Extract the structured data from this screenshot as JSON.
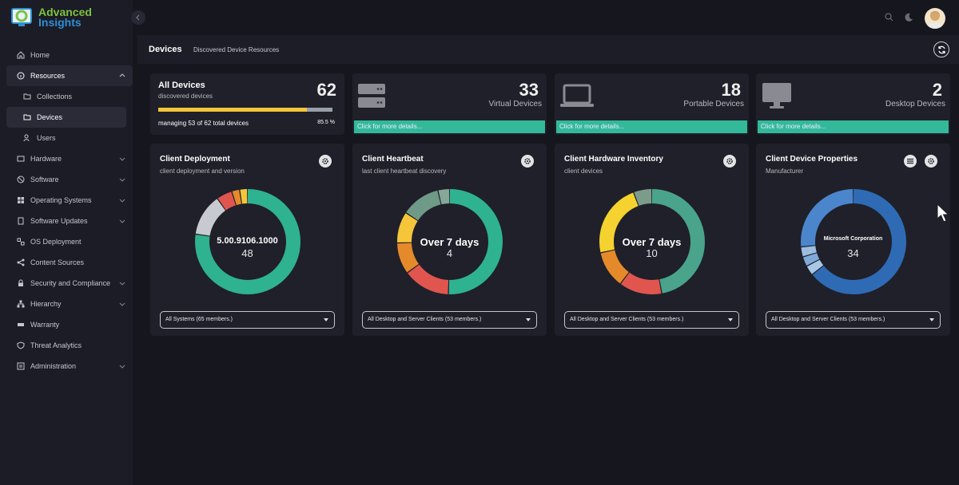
{
  "app": {
    "name_line1": "Advanced",
    "name_line2": "Insights"
  },
  "sidebar": {
    "items": [
      {
        "label": "Home",
        "icon": "home-icon"
      },
      {
        "label": "Resources",
        "icon": "info-icon"
      },
      {
        "label": "Collections",
        "icon": "folder-icon"
      },
      {
        "label": "Devices",
        "icon": "folder-icon"
      },
      {
        "label": "Users",
        "icon": "users-icon"
      },
      {
        "label": "Hardware",
        "icon": "hardware-icon"
      },
      {
        "label": "Software",
        "icon": "software-icon"
      },
      {
        "label": "Operating Systems",
        "icon": "os-icon"
      },
      {
        "label": "Software Updates",
        "icon": "updates-icon"
      },
      {
        "label": "OS Deployment",
        "icon": "deploy-icon"
      },
      {
        "label": "Content Sources",
        "icon": "share-icon"
      },
      {
        "label": "Security and Compliance",
        "icon": "lock-icon"
      },
      {
        "label": "Hierarchy",
        "icon": "hierarchy-icon"
      },
      {
        "label": "Warranty",
        "icon": "warranty-icon"
      },
      {
        "label": "Threat Analytics",
        "icon": "shield-icon"
      },
      {
        "label": "Administration",
        "icon": "admin-icon"
      }
    ]
  },
  "page": {
    "title": "Devices",
    "subtitle": "Discovered Device Resources"
  },
  "summary": {
    "all": {
      "title": "All Devices",
      "subtitle": "discovered devices",
      "count": "62",
      "managing": "managing 53 of 62 total devices",
      "pct": "85.5 %",
      "fraction": 0.855
    },
    "cards": [
      {
        "count": "33",
        "label": "Virtual Devices",
        "details": "Click for more details...",
        "icon": "server-icon"
      },
      {
        "count": "18",
        "label": "Portable Devices",
        "details": "Click for more details...",
        "icon": "laptop-icon"
      },
      {
        "count": "2",
        "label": "Desktop Devices",
        "details": "Click for more details...",
        "icon": "monitor-icon"
      }
    ]
  },
  "donuts": [
    {
      "title": "Client Deployment",
      "subtitle": "client deployment and version",
      "center_label": "5.00.9106.1000",
      "center_value": "48",
      "select": "All Systems (65 members.)",
      "segments": [
        {
          "value": 48,
          "color": "#2fb28f"
        },
        {
          "value": 8,
          "color": "#c8cad2"
        },
        {
          "value": 3,
          "color": "#e0564f"
        },
        {
          "value": 1.5,
          "color": "#e58a2a"
        },
        {
          "value": 1.5,
          "color": "#f5c63a"
        }
      ]
    },
    {
      "title": "Client Heartbeat",
      "subtitle": "last client heartbeat discovery",
      "center_label": "Over 7 days",
      "center_value": "4",
      "select": "All Desktop and Server Clients (53 members.)",
      "segments": [
        {
          "value": 42,
          "color": "#2fb28f"
        },
        {
          "value": 12,
          "color": "#e0564f"
        },
        {
          "value": 8,
          "color": "#e58a2a"
        },
        {
          "value": 8,
          "color": "#f5c63a"
        },
        {
          "value": 10,
          "color": "#6f9a87"
        },
        {
          "value": 3,
          "color": "#85a898"
        }
      ]
    },
    {
      "title": "Client Hardware Inventory",
      "subtitle": "client devices",
      "center_label": "Over 7 days",
      "center_value": "10",
      "select": "All Desktop and Server Clients (53 members.)",
      "segments": [
        {
          "value": 50,
          "color": "#4aa38b"
        },
        {
          "value": 14,
          "color": "#e0564f"
        },
        {
          "value": 12,
          "color": "#e58a2a"
        },
        {
          "value": 24,
          "color": "#f5d22f"
        },
        {
          "value": 6,
          "color": "#7b9c8a"
        }
      ]
    },
    {
      "title": "Client Device Properties",
      "subtitle": "Manufacturer",
      "center_label": "Microsoft Corporation",
      "center_value": "34",
      "select": "All Desktop and Server Clients (53 members.)",
      "segments": [
        {
          "value": 34,
          "color": "#2f6bb5"
        },
        {
          "value": 1.6,
          "color": "#a8c7e6"
        },
        {
          "value": 1.6,
          "color": "#7fa9d8"
        },
        {
          "value": 1.6,
          "color": "#9cbde0"
        },
        {
          "value": 14,
          "color": "#4b86cd"
        }
      ]
    }
  ],
  "colors": {
    "accent": "#33b99a",
    "progress": "#f5c63a"
  }
}
